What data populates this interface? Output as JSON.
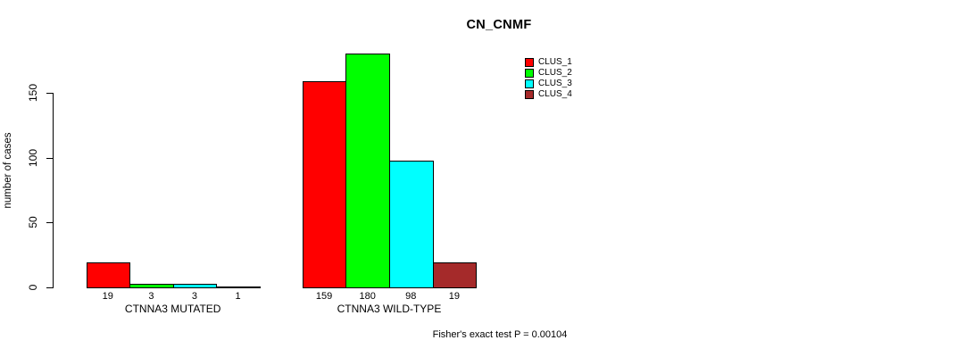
{
  "chart_data": {
    "type": "bar",
    "title": "CN_CNMF",
    "xlabel": "",
    "ylabel": "number of cases",
    "ylim": [
      0,
      180
    ],
    "yticks": [
      0,
      50,
      100,
      150
    ],
    "grid": false,
    "legend_position": "top-right-outside",
    "categories": [
      "CTNNA3 MUTATED",
      "CTNNA3 WILD-TYPE"
    ],
    "series": [
      {
        "name": "CLUS_1",
        "color": "#FF0000",
        "values": [
          19,
          159
        ]
      },
      {
        "name": "CLUS_2",
        "color": "#00FF00",
        "values": [
          3,
          180
        ]
      },
      {
        "name": "CLUS_3",
        "color": "#00FFFF",
        "values": [
          3,
          98
        ]
      },
      {
        "name": "CLUS_4",
        "color": "#A52A2A",
        "values": [
          1,
          19
        ]
      }
    ],
    "bar_value_labels": [
      [
        "19",
        "3",
        "3",
        "1"
      ],
      [
        "159",
        "180",
        "98",
        "19"
      ]
    ],
    "annotation": "Fisher's exact test P = 0.00104"
  },
  "colors": {
    "background": "#FFFFFF",
    "text": "#000000",
    "axis": "#000000"
  }
}
